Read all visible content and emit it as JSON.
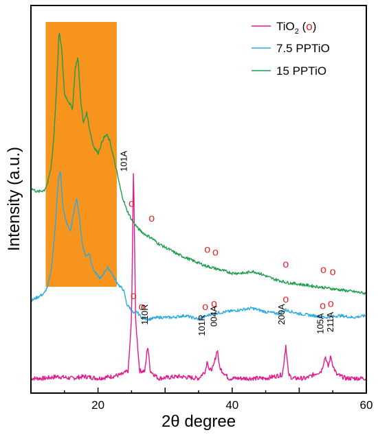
{
  "chart_data": {
    "type": "line",
    "title": "",
    "xlabel": "2θ degree",
    "ylabel": "Intensity (a.u.)",
    "xlim": [
      10,
      60
    ],
    "xticks": [
      "20",
      "40",
      "60"
    ],
    "legend_position": "top-right",
    "highlight_band": {
      "x_range": [
        12.2,
        22.8
      ],
      "color": "#f7941d"
    },
    "legend": [
      {
        "prefix": "TiO",
        "sub": "2",
        "middle": " (",
        "marker": "o",
        "suffix": ")",
        "color": "#e6168b"
      },
      {
        "text": "7.5 PPTiO",
        "color": "#29abe2"
      },
      {
        "text": "15 PPTiO",
        "color": "#1e9e4a"
      }
    ],
    "series": [
      {
        "name": "TiO2",
        "color": "#e6168b",
        "x": [
          10,
          12,
          14,
          16,
          18,
          20,
          22,
          23.5,
          24.5,
          25.0,
          25.3,
          25.6,
          26.2,
          27.0,
          27.4,
          27.8,
          29,
          32,
          35,
          36.0,
          36.3,
          36.6,
          37.2,
          37.8,
          38.1,
          38.5,
          39.5,
          42,
          45,
          47.5,
          48.0,
          48.4,
          49.0,
          51,
          53.3,
          53.9,
          54.3,
          54.7,
          55.1,
          55.6,
          57,
          58.5,
          60
        ],
        "y": [
          0.04,
          0.04,
          0.045,
          0.04,
          0.045,
          0.04,
          0.045,
          0.05,
          0.06,
          0.2,
          0.62,
          0.2,
          0.06,
          0.06,
          0.13,
          0.06,
          0.04,
          0.045,
          0.04,
          0.06,
          0.09,
          0.06,
          0.07,
          0.12,
          0.07,
          0.06,
          0.04,
          0.04,
          0.04,
          0.05,
          0.13,
          0.05,
          0.04,
          0.04,
          0.06,
          0.1,
          0.07,
          0.1,
          0.07,
          0.05,
          0.04,
          0.04,
          0.04
        ]
      },
      {
        "name": "7.5 PPTiO",
        "color": "#29abe2",
        "x": [
          10,
          11,
          12,
          12.5,
          13.0,
          13.4,
          13.8,
          14.1,
          14.4,
          14.8,
          15.3,
          15.9,
          16.4,
          16.8,
          17.2,
          17.7,
          18.2,
          18.7,
          19.2,
          19.8,
          20.4,
          21.0,
          21.4,
          21.9,
          22.5,
          23.2,
          23.8,
          24.3,
          24.8,
          25.3,
          25.8,
          26.5,
          27.5,
          29,
          31,
          33,
          35,
          37,
          39,
          41,
          43,
          45,
          47,
          48,
          50,
          52,
          54,
          56,
          58,
          60
        ],
        "y": [
          0.25,
          0.26,
          0.27,
          0.29,
          0.33,
          0.4,
          0.5,
          0.58,
          0.6,
          0.5,
          0.46,
          0.44,
          0.49,
          0.53,
          0.48,
          0.4,
          0.37,
          0.38,
          0.34,
          0.32,
          0.31,
          0.33,
          0.34,
          0.33,
          0.31,
          0.29,
          0.28,
          0.24,
          0.23,
          0.215,
          0.22,
          0.205,
          0.2,
          0.205,
          0.205,
          0.21,
          0.2,
          0.215,
          0.22,
          0.225,
          0.23,
          0.22,
          0.215,
          0.225,
          0.215,
          0.21,
          0.205,
          0.21,
          0.205,
          0.21
        ]
      },
      {
        "name": "15 PPTiO",
        "color": "#1e9e4a",
        "x": [
          10,
          11,
          12,
          12.5,
          13.0,
          13.4,
          13.8,
          14.2,
          14.6,
          15.0,
          15.6,
          16.2,
          16.6,
          17.0,
          17.4,
          17.8,
          18.3,
          18.8,
          19.3,
          20.0,
          20.8,
          21.3,
          21.8,
          22.3,
          22.8,
          23.5,
          24.2,
          25,
          26,
          27,
          28,
          29,
          30,
          32,
          34,
          36,
          38,
          40,
          42,
          43,
          44,
          46,
          48,
          50,
          52,
          54,
          56,
          58,
          60
        ],
        "y": [
          0.555,
          0.545,
          0.55,
          0.57,
          0.61,
          0.69,
          0.82,
          0.98,
          0.93,
          0.81,
          0.79,
          0.77,
          0.88,
          0.91,
          0.8,
          0.73,
          0.76,
          0.71,
          0.67,
          0.65,
          0.69,
          0.7,
          0.68,
          0.64,
          0.6,
          0.54,
          0.5,
          0.47,
          0.445,
          0.43,
          0.42,
          0.405,
          0.395,
          0.375,
          0.36,
          0.345,
          0.335,
          0.325,
          0.325,
          0.33,
          0.325,
          0.31,
          0.3,
          0.295,
          0.29,
          0.285,
          0.28,
          0.275,
          0.27
        ]
      }
    ],
    "markers": {
      "symbol": "o",
      "color": "#e8242a",
      "points": [
        {
          "x": 25.0,
          "y": 0.505
        },
        {
          "x": 28.0,
          "y": 0.465
        },
        {
          "x": 36.3,
          "y": 0.38
        },
        {
          "x": 37.5,
          "y": 0.373
        },
        {
          "x": 48.0,
          "y": 0.34
        },
        {
          "x": 53.6,
          "y": 0.325
        },
        {
          "x": 55.0,
          "y": 0.32
        },
        {
          "x": 25.3,
          "y": 0.255
        },
        {
          "x": 26.5,
          "y": 0.225
        },
        {
          "x": 36.0,
          "y": 0.225
        },
        {
          "x": 37.3,
          "y": 0.233
        },
        {
          "x": 48.0,
          "y": 0.245
        },
        {
          "x": 53.5,
          "y": 0.228
        },
        {
          "x": 54.7,
          "y": 0.233
        }
      ]
    },
    "peak_labels": [
      {
        "text": "101A",
        "x": 24.3,
        "y": 0.6
      },
      {
        "text": "110R",
        "x": 27.4,
        "y": 0.185
      },
      {
        "text": "101R",
        "x": 35.9,
        "y": 0.155
      },
      {
        "text": "004A",
        "x": 37.7,
        "y": 0.18
      },
      {
        "text": "200A",
        "x": 47.8,
        "y": 0.185
      },
      {
        "text": "105A",
        "x": 53.6,
        "y": 0.16
      },
      {
        "text": "211A",
        "x": 55.1,
        "y": 0.165
      }
    ]
  }
}
